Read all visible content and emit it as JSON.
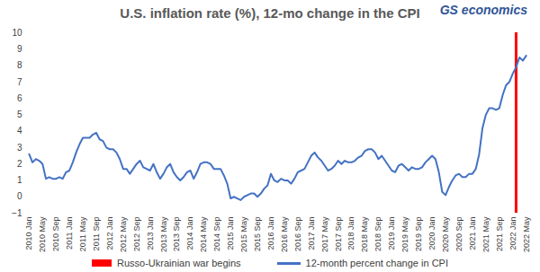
{
  "chart_data": {
    "type": "line",
    "title": "U.S. inflation rate (%), 12-mo change in the CPI",
    "logo": "GS economics",
    "categories": [
      "2010 Jan",
      null,
      null,
      null,
      "2010 May",
      null,
      null,
      null,
      "2010 Sep",
      null,
      null,
      null,
      "2011 Jan",
      null,
      null,
      null,
      "2011 May",
      null,
      null,
      null,
      "2011 Sep",
      null,
      null,
      null,
      "2012 Jan",
      null,
      null,
      null,
      "2012 May",
      null,
      null,
      null,
      "2012 Sep",
      null,
      null,
      null,
      "2013 Jan",
      null,
      null,
      null,
      "2013 May",
      null,
      null,
      null,
      "2013 Sep",
      null,
      null,
      null,
      "2014 Jan",
      null,
      null,
      null,
      "2014 May",
      null,
      null,
      null,
      "2014 Sep",
      null,
      null,
      null,
      "2015 Jan",
      null,
      null,
      null,
      "2015 May",
      null,
      null,
      null,
      "2015 Sep",
      null,
      null,
      null,
      "2016 Jan",
      null,
      null,
      null,
      "2016 May",
      null,
      null,
      null,
      "2016 Sep",
      null,
      null,
      null,
      "2017 Jan",
      null,
      null,
      null,
      "2017 May",
      null,
      null,
      null,
      "2017 Sep",
      null,
      null,
      null,
      "2018 Jan",
      null,
      null,
      null,
      "2018 May",
      null,
      null,
      null,
      "2018 Sep",
      null,
      null,
      null,
      "2019 Jan",
      null,
      null,
      null,
      "2019 May",
      null,
      null,
      null,
      "2019 Sep",
      null,
      null,
      null,
      "2020 Jan",
      null,
      null,
      null,
      "2020 May",
      null,
      null,
      null,
      "2020 Sep",
      null,
      null,
      null,
      "2021 Jan",
      null,
      null,
      null,
      "2021 May",
      null,
      null,
      null,
      "2021 Sep",
      null,
      null,
      null,
      "2022 Jan",
      null,
      null,
      null,
      "2022 May"
    ],
    "series": [
      {
        "name": "12-month percent change in CPI",
        "color": "#4472c4",
        "values": [
          2.6,
          2.1,
          2.3,
          2.2,
          2.0,
          1.1,
          1.2,
          1.1,
          1.1,
          1.2,
          1.1,
          1.5,
          1.6,
          2.1,
          2.7,
          3.2,
          3.6,
          3.6,
          3.6,
          3.8,
          3.9,
          3.5,
          3.4,
          3.0,
          2.9,
          2.9,
          2.7,
          2.3,
          1.7,
          1.7,
          1.4,
          1.7,
          2.0,
          2.2,
          1.8,
          1.7,
          1.6,
          2.0,
          1.5,
          1.1,
          1.4,
          1.8,
          2.0,
          1.5,
          1.2,
          1.0,
          1.2,
          1.5,
          1.6,
          1.1,
          1.5,
          2.0,
          2.1,
          2.1,
          2.0,
          1.7,
          1.7,
          1.7,
          1.3,
          0.8,
          -0.1,
          0.0,
          -0.1,
          -0.2,
          0.0,
          0.1,
          0.2,
          0.2,
          0.0,
          0.2,
          0.5,
          0.7,
          1.4,
          1.0,
          0.9,
          1.1,
          1.0,
          1.0,
          0.8,
          1.1,
          1.5,
          1.6,
          1.7,
          2.1,
          2.5,
          2.7,
          2.4,
          2.2,
          1.9,
          1.6,
          1.7,
          1.9,
          2.2,
          2.0,
          2.2,
          2.1,
          2.1,
          2.2,
          2.4,
          2.5,
          2.8,
          2.9,
          2.9,
          2.7,
          2.3,
          2.5,
          2.2,
          1.9,
          1.6,
          1.5,
          1.9,
          2.0,
          1.8,
          1.6,
          1.8,
          1.7,
          1.7,
          1.8,
          2.1,
          2.3,
          2.5,
          2.3,
          1.5,
          0.3,
          0.1,
          0.6,
          1.0,
          1.3,
          1.4,
          1.2,
          1.2,
          1.4,
          1.4,
          1.7,
          2.6,
          4.2,
          5.0,
          5.4,
          5.4,
          5.3,
          5.4,
          6.2,
          6.8,
          7.0,
          7.5,
          7.9,
          8.5,
          8.3,
          8.6
        ]
      }
    ],
    "vline": {
      "name": "Russo-Ukrainian war begins",
      "color": "#ff0000",
      "at": 145
    },
    "ylim": [
      -1,
      10
    ],
    "yticks": [
      -1,
      0,
      1,
      2,
      3,
      4,
      5,
      6,
      7,
      8,
      9,
      10
    ],
    "grid": false,
    "legend": "bottom"
  }
}
